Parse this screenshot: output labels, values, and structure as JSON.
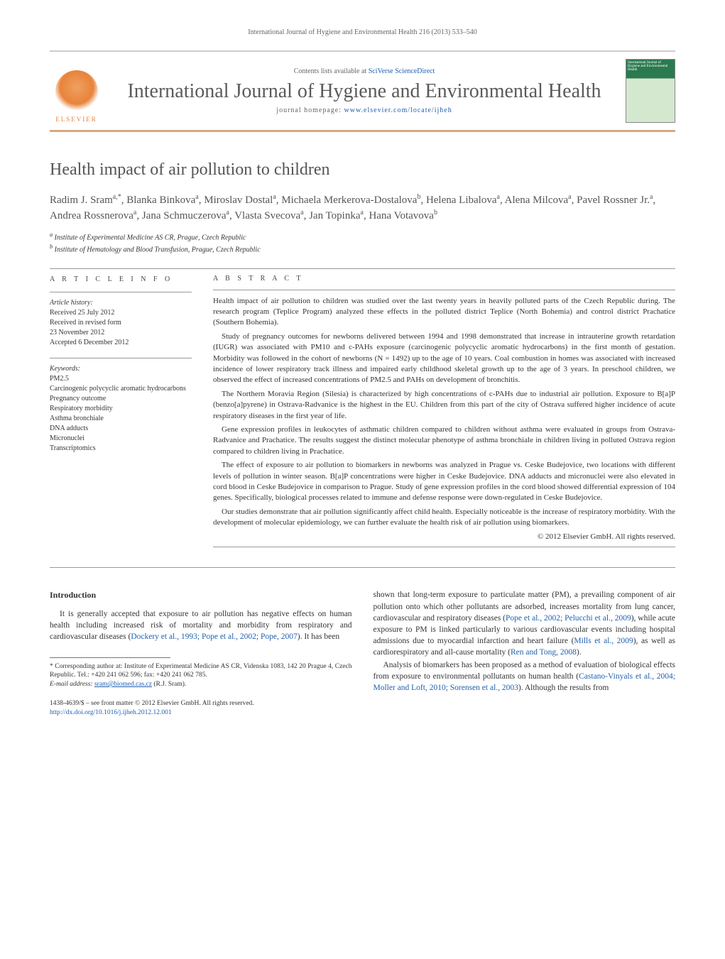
{
  "running_header": "International Journal of Hygiene and Environmental Health 216 (2013) 533–540",
  "masthead": {
    "contents_prefix": "Contents lists available at ",
    "contents_link": "SciVerse ScienceDirect",
    "journal_name": "International Journal of Hygiene and Environmental Health",
    "homepage_prefix": "journal homepage: ",
    "homepage_url": "www.elsevier.com/locate/ijheh",
    "elsevier_label": "ELSEVIER",
    "cover_text": "International Journal of Hygiene and Environmental Health"
  },
  "article": {
    "title": "Health impact of air pollution to children",
    "authors_html": "Radim J. Sram<sup>a,*</sup>, Blanka Binkova<sup>a</sup>, Miroslav Dostal<sup>a</sup>, Michaela Merkerova-Dostalova<sup>b</sup>, Helena Libalova<sup>a</sup>, Alena Milcova<sup>a</sup>, Pavel Rossner Jr.<sup>a</sup>, Andrea Rossnerova<sup>a</sup>, Jana Schmuczerova<sup>a</sup>, Vlasta Svecova<sup>a</sup>, Jan Topinka<sup>a</sup>, Hana Votavova<sup>b</sup>",
    "affiliations": {
      "a": "Institute of Experimental Medicine AS CR, Prague, Czech Republic",
      "b": "Institute of Hematology and Blood Transfusion, Prague, Czech Republic"
    }
  },
  "article_info": {
    "heading": "A R T I C L E   I N F O",
    "history_label": "Article history:",
    "history": [
      "Received 25 July 2012",
      "Received in revised form",
      "23 November 2012",
      "Accepted 6 December 2012"
    ],
    "keywords_label": "Keywords:",
    "keywords": [
      "PM2.5",
      "Carcinogenic polycyclic aromatic hydrocarbons",
      "Pregnancy outcome",
      "Respiratory morbidity",
      "Asthma bronchiale",
      "DNA adducts",
      "Micronuclei",
      "Transcriptomics"
    ]
  },
  "abstract": {
    "heading": "A B S T R A C T",
    "paragraphs": [
      "Health impact of air pollution to children was studied over the last twenty years in heavily polluted parts of the Czech Republic during. The research program (Teplice Program) analyzed these effects in the polluted district Teplice (North Bohemia) and control district Prachatice (Southern Bohemia).",
      "Study of pregnancy outcomes for newborns delivered between 1994 and 1998 demonstrated that increase in intrauterine growth retardation (IUGR) was associated with PM10 and c-PAHs exposure (carcinogenic polycyclic aromatic hydrocarbons) in the first month of gestation. Morbidity was followed in the cohort of newborns (N = 1492) up to the age of 10 years. Coal combustion in homes was associated with increased incidence of lower respiratory track illness and impaired early childhood skeletal growth up to the age of 3 years. In preschool children, we observed the effect of increased concentrations of PM2.5 and PAHs on development of bronchitis.",
      "The Northern Moravia Region (Silesia) is characterized by high concentrations of c-PAHs due to industrial air pollution. Exposure to B[a]P (benzo[a]pyrene) in Ostrava-Radvanice is the highest in the EU. Children from this part of the city of Ostrava suffered higher incidence of acute respiratory diseases in the first year of life.",
      "Gene expression profiles in leukocytes of asthmatic children compared to children without asthma were evaluated in groups from Ostrava-Radvanice and Prachatice. The results suggest the distinct molecular phenotype of asthma bronchiale in children living in polluted Ostrava region compared to children living in Prachatice.",
      "The effect of exposure to air pollution to biomarkers in newborns was analyzed in Prague vs. Ceske Budejovice, two locations with different levels of pollution in winter season. B[a]P concentrations were higher in Ceske Budejovice. DNA adducts and micronuclei were also elevated in cord blood in Ceske Budejovice in comparison to Prague. Study of gene expression profiles in the cord blood showed differential expression of 104 genes. Specifically, biological processes related to immune and defense response were down-regulated in Ceske Budejovice.",
      "Our studies demonstrate that air pollution significantly affect child health. Especially noticeable is the increase of respiratory morbidity. With the development of molecular epidemiology, we can further evaluate the health risk of air pollution using biomarkers."
    ],
    "copyright": "© 2012 Elsevier GmbH. All rights reserved."
  },
  "body": {
    "intro_heading": "Introduction",
    "left_paragraphs": [
      "It is generally accepted that exposure to air pollution has negative effects on human health including increased risk of mortality and morbidity from respiratory and cardiovascular diseases (<span class=\"cite\">Dockery et al., 1993; Pope et al., 2002; Pope, 2007</span>). It has been"
    ],
    "right_paragraphs": [
      "shown that long-term exposure to particulate matter (PM), a prevailing component of air pollution onto which other pollutants are adsorbed, increases mortality from lung cancer, cardiovascular and respiratory diseases (<span class=\"cite\">Pope et al., 2002; Pelucchi et al., 2009</span>), while acute exposure to PM is linked particularly to various cardiovascular events including hospital admissions due to myocardial infarction and heart failure (<span class=\"cite\">Mills et al., 2009</span>), as well as cardiorespiratory and all-cause mortality (<span class=\"cite\">Ren and Tong, 2008</span>).",
      "Analysis of biomarkers has been proposed as a method of evaluation of biological effects from exposure to environmental pollutants on human health (<span class=\"cite\">Castano-Vinyals et al., 2004; Moller and Loft, 2010; Sorensen et al., 2003</span>). Although the results from"
    ]
  },
  "footnotes": {
    "corresponding": "* Corresponding author at: Institute of Experimental Medicine AS CR, Videnska 1083, 142 20 Prague 4, Czech Republic. Tel.: +420 241 062 596; fax: +420 241 062 785.",
    "email_label": "E-mail address:",
    "email": "sram@biomed.cas.cz",
    "email_attribution": "(R.J. Sram)."
  },
  "footer": {
    "issn_line": "1438-4639/$ – see front matter © 2012 Elsevier GmbH. All rights reserved.",
    "doi_url": "http://dx.doi.org/10.1016/j.ijheh.2012.12.001"
  },
  "colors": {
    "link": "#2060b0",
    "accent_bar": "#d9a87f",
    "elsevier": "#e8833a",
    "text": "#333333",
    "heading_gray": "#555555"
  },
  "typography": {
    "body_family": "Georgia, Times New Roman, serif",
    "title_size_pt": 24,
    "journal_name_size_pt": 28,
    "body_size_pt": 11.5,
    "abstract_size_pt": 11,
    "info_size_pt": 10
  }
}
